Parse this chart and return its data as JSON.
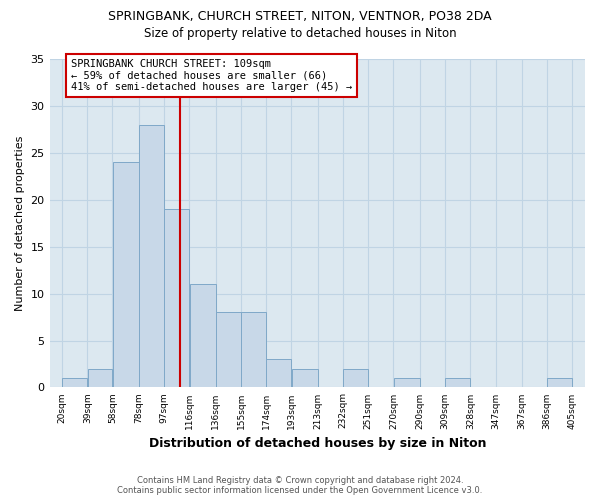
{
  "title1": "SPRINGBANK, CHURCH STREET, NITON, VENTNOR, PO38 2DA",
  "title2": "Size of property relative to detached houses in Niton",
  "xlabel": "Distribution of detached houses by size in Niton",
  "ylabel": "Number of detached properties",
  "bar_edges": [
    20,
    39,
    58,
    78,
    97,
    116,
    136,
    155,
    174,
    193,
    213,
    232,
    251,
    270,
    290,
    309,
    328,
    347,
    367,
    386,
    405
  ],
  "bar_heights": [
    1,
    2,
    24,
    28,
    19,
    11,
    8,
    8,
    3,
    2,
    0,
    2,
    0,
    1,
    0,
    1,
    0,
    0,
    0,
    1
  ],
  "bar_color": "#c8d8e8",
  "bar_edgecolor": "#7fa8c8",
  "vline_x": 109,
  "vline_color": "#cc0000",
  "ylim": [
    0,
    35
  ],
  "annotation_text_line1": "SPRINGBANK CHURCH STREET: 109sqm",
  "annotation_text_line2": "← 59% of detached houses are smaller (66)",
  "annotation_text_line3": "41% of semi-detached houses are larger (45) →",
  "tick_labels": [
    "20sqm",
    "39sqm",
    "58sqm",
    "78sqm",
    "97sqm",
    "116sqm",
    "136sqm",
    "155sqm",
    "174sqm",
    "193sqm",
    "213sqm",
    "232sqm",
    "251sqm",
    "270sqm",
    "290sqm",
    "309sqm",
    "328sqm",
    "347sqm",
    "367sqm",
    "386sqm",
    "405sqm"
  ],
  "footer_line1": "Contains HM Land Registry data © Crown copyright and database right 2024.",
  "footer_line2": "Contains public sector information licensed under the Open Government Licence v3.0.",
  "grid_color": "#c8d8e8",
  "background_color": "#dce8f0",
  "title1_fontsize": 9,
  "title2_fontsize": 8.5,
  "ylabel_fontsize": 8,
  "xlabel_fontsize": 9,
  "footer_fontsize": 6,
  "tick_fontsize": 6.5,
  "ann_fontsize": 7.5
}
